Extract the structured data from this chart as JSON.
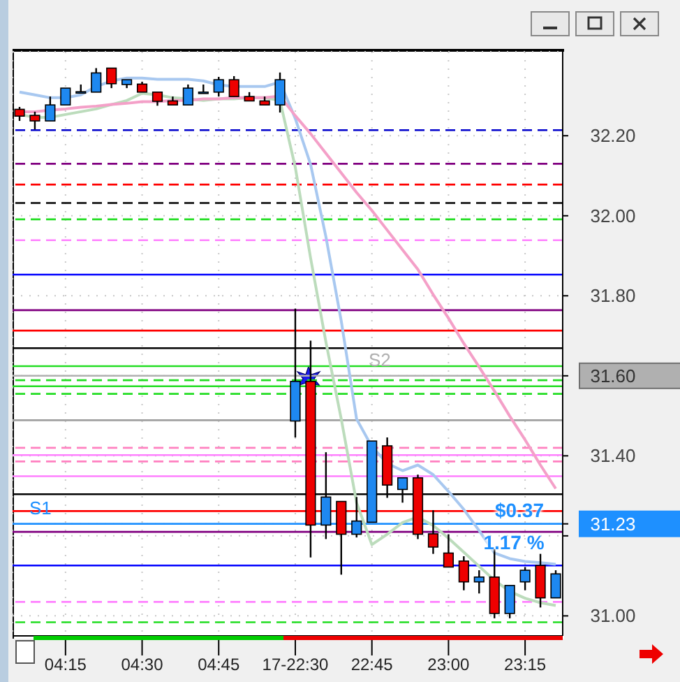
{
  "chart_data": {
    "type": "candlestick",
    "categories": [
      null,
      null,
      null,
      "04:15",
      null,
      null,
      null,
      null,
      "04:30",
      null,
      null,
      null,
      null,
      "04:45",
      null,
      null,
      null,
      null,
      "17-22:30",
      null,
      null,
      null,
      null,
      "22:45",
      null,
      null,
      null,
      null,
      "23:00",
      null,
      null,
      null,
      null,
      "23:15",
      null,
      null
    ],
    "ohlc": [
      [
        32.266,
        32.272,
        32.237,
        32.249
      ],
      [
        32.251,
        32.26,
        32.216,
        32.237
      ],
      [
        32.237,
        32.298,
        32.237,
        32.277
      ],
      [
        32.277,
        32.319,
        32.277,
        32.319
      ],
      [
        32.31,
        32.328,
        32.31,
        32.31
      ],
      [
        32.309,
        32.369,
        32.309,
        32.357
      ],
      [
        32.369,
        32.369,
        32.319,
        32.33
      ],
      [
        32.328,
        32.34,
        32.319,
        32.34
      ],
      [
        32.329,
        32.335,
        32.309,
        32.309
      ],
      [
        32.309,
        32.309,
        32.275,
        32.286
      ],
      [
        32.287,
        32.298,
        32.277,
        32.277
      ],
      [
        32.277,
        32.328,
        32.277,
        32.319
      ],
      [
        32.309,
        32.328,
        32.309,
        32.309
      ],
      [
        32.309,
        32.347,
        32.298,
        32.34
      ],
      [
        32.34,
        32.349,
        32.298,
        32.298
      ],
      [
        32.298,
        32.309,
        32.287,
        32.287
      ],
      [
        32.287,
        32.298,
        32.277,
        32.277
      ],
      [
        32.277,
        32.358,
        32.258,
        32.34
      ],
      [
        31.487,
        31.768,
        31.446,
        31.586
      ],
      [
        31.586,
        31.688,
        31.146,
        31.227
      ],
      [
        31.227,
        31.409,
        31.192,
        31.297
      ],
      [
        31.286,
        31.286,
        31.103,
        31.204
      ],
      [
        31.204,
        31.297,
        31.196,
        31.237
      ],
      [
        31.234,
        31.437,
        31.234,
        31.437
      ],
      [
        31.425,
        31.446,
        31.295,
        31.327
      ],
      [
        31.316,
        31.345,
        31.283,
        31.345
      ],
      [
        31.345,
        31.353,
        31.192,
        31.204
      ],
      [
        31.205,
        31.264,
        31.155,
        31.172
      ],
      [
        31.157,
        31.204,
        31.122,
        31.122
      ],
      [
        31.137,
        31.149,
        31.064,
        31.085
      ],
      [
        31.085,
        31.114,
        31.056,
        31.097
      ],
      [
        31.097,
        31.167,
        30.994,
        31.006
      ],
      [
        31.006,
        31.076,
        30.994,
        31.076
      ],
      [
        31.085,
        31.122,
        31.064,
        31.114
      ],
      [
        31.126,
        31.155,
        31.021,
        31.045
      ],
      [
        31.045,
        31.114,
        31.045,
        31.105
      ]
    ],
    "colors": [
      "#ee0000",
      "#ee0000",
      "#1e88f0",
      "#1e88f0",
      "#1e88f0",
      "#1e88f0",
      "#ee0000",
      "#1e88f0",
      "#ee0000",
      "#ee0000",
      "#ee0000",
      "#1e88f0",
      "#1e88f0",
      "#1e88f0",
      "#ee0000",
      "#ee0000",
      "#ee0000",
      "#1e88f0",
      "#1e88f0",
      "#ee0000",
      "#1e88f0",
      "#ee0000",
      "#1e88f0",
      "#1e88f0",
      "#ee0000",
      "#1e88f0",
      "#ee0000",
      "#ee0000",
      "#ee0000",
      "#ee0000",
      "#1e88f0",
      "#ee0000",
      "#1e88f0",
      "#1e88f0",
      "#ee0000",
      "#1e88f0"
    ],
    "series": [
      {
        "type": "line",
        "color": "#a8c8f0",
        "values": [
          32.309,
          32.302,
          32.295,
          32.295,
          32.302,
          32.323,
          32.337,
          32.344,
          32.344,
          32.341,
          32.341,
          32.341,
          32.337,
          32.327,
          32.323,
          32.323,
          32.323,
          32.334,
          32.243,
          32.128,
          31.947,
          31.737,
          31.492,
          31.423,
          31.381,
          31.363,
          31.377,
          31.353,
          31.311,
          31.266,
          31.213,
          31.157,
          31.143,
          31.136,
          31.133,
          31.129
        ]
      },
      {
        "type": "line",
        "color": "#bcdcbc",
        "values": [
          32.253,
          32.246,
          32.246,
          32.253,
          32.26,
          32.267,
          32.278,
          32.288,
          32.306,
          32.302,
          32.295,
          32.292,
          32.288,
          32.292,
          32.292,
          32.295,
          32.295,
          32.288,
          32.121,
          31.894,
          31.684,
          31.492,
          31.283,
          31.178,
          31.204,
          31.233,
          31.247,
          31.226,
          31.194,
          31.159,
          31.124,
          31.089,
          31.061,
          31.044,
          31.033,
          31.026
        ]
      },
      {
        "type": "line",
        "color": "#f4a0c8",
        "values": [
          32.26,
          32.26,
          32.264,
          32.267,
          32.271,
          32.274,
          32.278,
          32.281,
          32.285,
          32.285,
          32.288,
          32.288,
          32.292,
          32.292,
          32.295,
          32.295,
          32.295,
          32.299,
          32.25,
          32.205,
          32.156,
          32.107,
          32.058,
          32.013,
          31.964,
          31.915,
          31.866,
          31.803,
          31.744,
          31.681,
          31.622,
          31.562,
          31.499,
          31.44,
          31.377,
          31.318
        ]
      }
    ],
    "ylim": [
      30.95,
      32.41
    ],
    "yticks": [
      {
        "value": 31.0,
        "label": "31.00"
      },
      {
        "value": 31.2,
        "label": null
      },
      {
        "value": 31.23,
        "label": "31.23"
      },
      {
        "value": 31.4,
        "label": "31.40"
      },
      {
        "value": 31.6,
        "label": "31.60"
      },
      {
        "value": 31.8,
        "label": "31.80"
      },
      {
        "value": 32.0,
        "label": "32.00"
      },
      {
        "value": 32.2,
        "label": "32.20"
      }
    ],
    "grid": true,
    "ref_lines": [
      {
        "axis": "y",
        "value": 32.214,
        "color": "#0000cc",
        "line_style": "dashed"
      },
      {
        "axis": "y",
        "value": 32.13,
        "color": "#800080",
        "line_style": "dashed"
      },
      {
        "axis": "y",
        "value": 32.078,
        "color": "#ff0000",
        "line_style": "dashed"
      },
      {
        "axis": "y",
        "value": 32.032,
        "color": "#000000",
        "line_style": "dashed"
      },
      {
        "axis": "y",
        "value": 31.991,
        "color": "#22dd22",
        "line_style": "dashed"
      },
      {
        "axis": "y",
        "value": 31.939,
        "color": "#ff80ff",
        "line_style": "dashed"
      },
      {
        "axis": "y",
        "value": 31.853,
        "color": "#0000ff",
        "line_style": "solid"
      },
      {
        "axis": "y",
        "value": 31.764,
        "color": "#800080",
        "line_style": "solid"
      },
      {
        "axis": "y",
        "value": 31.713,
        "color": "#ff0000",
        "line_style": "solid"
      },
      {
        "axis": "y",
        "value": 31.669,
        "color": "#000000",
        "line_style": "solid"
      },
      {
        "axis": "y",
        "value": 31.624,
        "color": "#22dd22",
        "line_style": "solid"
      },
      {
        "axis": "y",
        "value": 31.6,
        "color": "#b0b0b0",
        "line_style": "solid",
        "label": "S2"
      },
      {
        "axis": "y",
        "value": 31.589,
        "color": "#22dd22",
        "line_style": "dashed"
      },
      {
        "axis": "y",
        "value": 31.574,
        "color": "#22dd22",
        "line_style": "solid"
      },
      {
        "axis": "y",
        "value": 31.555,
        "color": "#22dd22",
        "line_style": "dashed"
      },
      {
        "axis": "y",
        "value": 31.489,
        "color": "#a0a0a0",
        "line_style": "solid"
      },
      {
        "axis": "y",
        "value": 31.42,
        "color": "#ff80c0",
        "line_style": "dashed"
      },
      {
        "axis": "y",
        "value": 31.402,
        "color": "#ff80ff",
        "line_style": "solid"
      },
      {
        "axis": "y",
        "value": 31.386,
        "color": "#ff80c0",
        "line_style": "dashed"
      },
      {
        "axis": "y",
        "value": 31.349,
        "color": "#ff80ff",
        "line_style": "solid"
      },
      {
        "axis": "y",
        "value": 31.304,
        "color": "#000000",
        "line_style": "solid"
      },
      {
        "axis": "y",
        "value": 31.262,
        "color": "#ff0000",
        "line_style": "solid"
      },
      {
        "axis": "y",
        "value": 31.23,
        "color": "#1e90ff",
        "line_style": "solid",
        "label": "S1"
      },
      {
        "axis": "y",
        "value": 31.21,
        "color": "#800080",
        "line_style": "solid"
      },
      {
        "axis": "y",
        "value": 31.126,
        "color": "#0000ff",
        "line_style": "solid"
      },
      {
        "axis": "y",
        "value": 31.035,
        "color": "#ff80ff",
        "line_style": "dashed"
      },
      {
        "axis": "y",
        "value": 30.984,
        "color": "#22dd22",
        "line_style": "dashed"
      }
    ],
    "annotations": [
      "$0.37",
      "1.17 %"
    ]
  }
}
